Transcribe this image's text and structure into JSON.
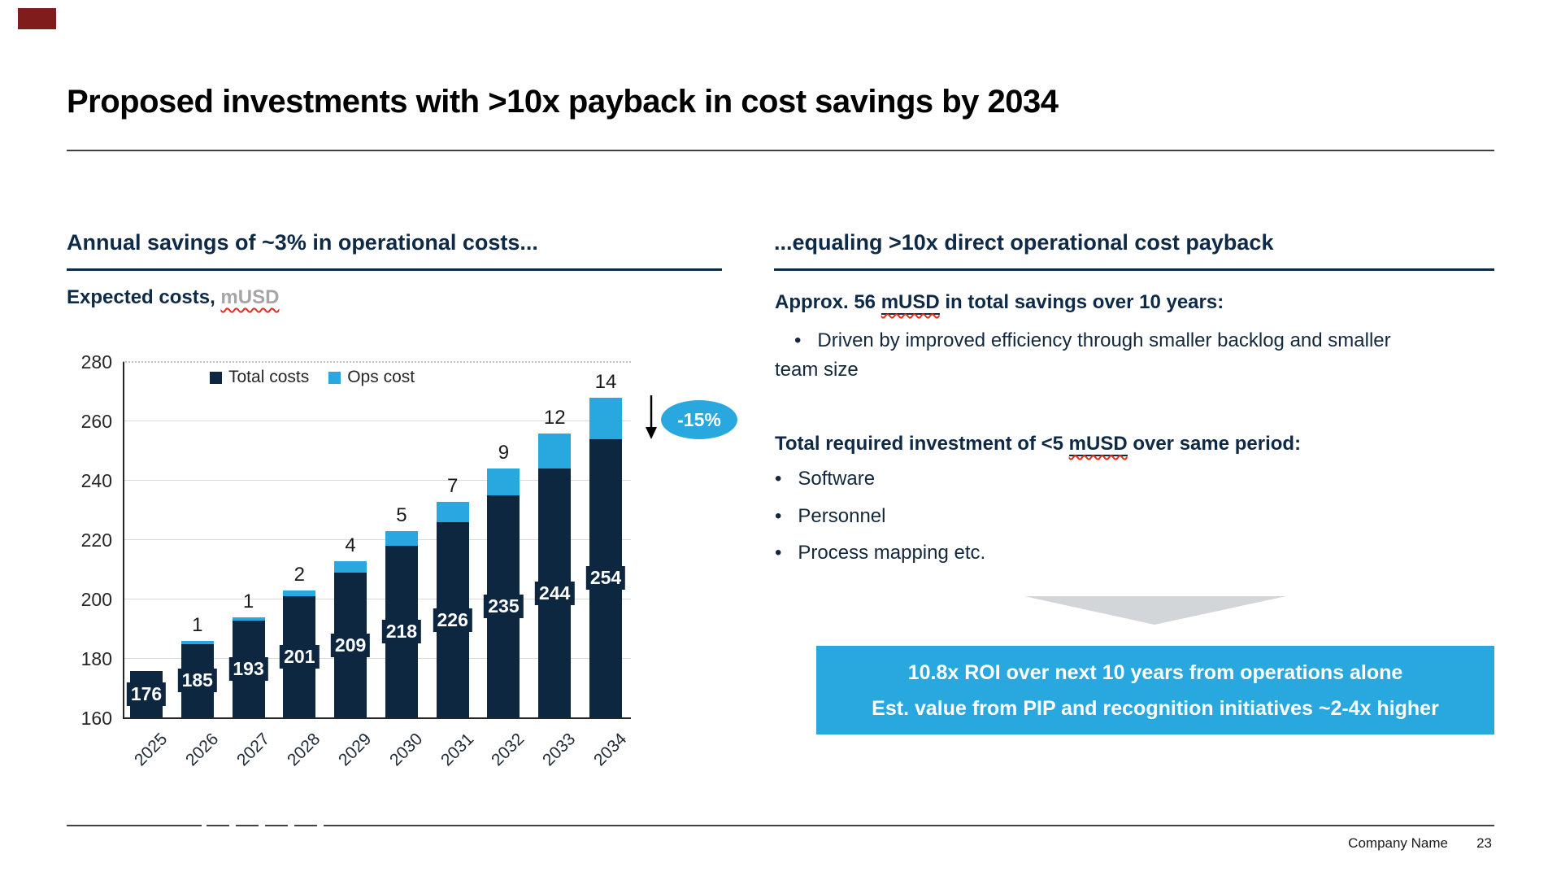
{
  "slide": {
    "title": "Proposed investments with >10x payback in cost savings by 2034",
    "footer": {
      "company": "Company Name",
      "page_number": "23"
    }
  },
  "left_panel": {
    "heading": "Annual savings of ~3% in operational costs...",
    "subtitle_bold": "Expected costs,",
    "subtitle_unit": "mUSD",
    "annotation_badge": "-15%"
  },
  "right_panel": {
    "heading": "...equaling >10x direct operational cost payback",
    "para1_prefix": "Approx. 56 ",
    "para1_unit": "mUSD",
    "para1_suffix": " in total savings over 10 years:",
    "bullet1": "Driven by improved efficiency through smaller backlog and smaller team size",
    "para2_prefix": "Total required investment of <5 ",
    "para2_unit": "mUSD",
    "para2_suffix": " over same period:",
    "bullets2": [
      "Software",
      "Personnel",
      "Process mapping etc."
    ],
    "roi_line1": "10.8x ROI over next 10 years from operations alone",
    "roi_line2": "Est. value from PIP and recognition initiatives ~2-4x higher"
  },
  "chart_data": {
    "type": "bar",
    "subtype": "stacked-column",
    "title": "Expected costs, mUSD",
    "categories": [
      "2025",
      "2026",
      "2027",
      "2028",
      "2029",
      "2030",
      "2031",
      "2032",
      "2033",
      "2034"
    ],
    "series": [
      {
        "name": "Total costs",
        "color": "#0e2740",
        "values": [
          176,
          185,
          193,
          201,
          209,
          218,
          226,
          235,
          244,
          254
        ]
      },
      {
        "name": "Ops cost",
        "color": "#29a8e0",
        "values": [
          0,
          1,
          1,
          2,
          4,
          5,
          7,
          9,
          12,
          14
        ]
      }
    ],
    "y_axis": {
      "min": 160,
      "max": 280,
      "step": 20,
      "tick_labels": [
        "160",
        "180",
        "200",
        "220",
        "240",
        "260",
        "280"
      ]
    },
    "grid": "horizontal, light gray, dotted at 280",
    "legend_position": "top-center",
    "data_labels": {
      "total_inside_center_white": true,
      "ops_outside_end_dark": true
    },
    "annotation": {
      "label": "-15%",
      "shape": "blue ellipse with down arrow",
      "color": "#29a8e0"
    }
  },
  "colors": {
    "navy": "#0e2740",
    "accent_blue": "#29a8e0",
    "triangle_gray": "#d3d6d8",
    "grid_gray": "#d9d9d9",
    "axis_text": "#262626",
    "unit_gray": "#a6a6a6",
    "squiggle_red": "#e0301e",
    "corner_mark_red": "#7f1d1d"
  }
}
